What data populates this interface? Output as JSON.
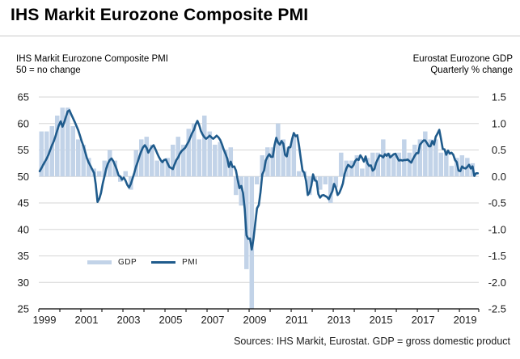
{
  "header": {
    "title": "IHS Markit Eurozone Composite PMI"
  },
  "subtitle_left": {
    "line1": "IHS Markit Eurozone Composite PMI",
    "line2": "50 = no change"
  },
  "subtitle_right": {
    "line1": "Eurostat Eurozone GDP",
    "line2": "Quarterly % change"
  },
  "legend": {
    "gdp_label": "GDP",
    "pmi_label": "PMI"
  },
  "footer": {
    "source": "Sources: IHS Markit, Eurostat. GDP = gross domestic product"
  },
  "colors": {
    "gdp_bar": "#c2d3e8",
    "pmi_line": "#1f5b8c",
    "gridline": "#d5d5d5",
    "axis": "#000000",
    "text": "#1a1a1a"
  },
  "chart_data": {
    "type": "bar+line combo, dual y-axis",
    "title": "IHS Markit Eurozone Composite PMI",
    "x_axis": {
      "start": 1999,
      "end": 2019.92,
      "tick_years": [
        1999,
        2001,
        2003,
        2005,
        2007,
        2009,
        2011,
        2013,
        2015,
        2017,
        2019
      ]
    },
    "left_axis": {
      "label": "PMI, 50 = no change",
      "min": 25,
      "max": 65,
      "step": 5,
      "ticks": [
        65,
        60,
        55,
        50,
        45,
        40,
        35,
        30,
        25
      ]
    },
    "right_axis": {
      "label": "GDP quarterly % change",
      "min": -2.5,
      "max": 1.5,
      "step": 0.5,
      "ticks": [
        "1.5",
        "1.0",
        "0.5",
        "0.0",
        "-0.5",
        "-1.0",
        "-1.5",
        "-2.0",
        "-2.5"
      ]
    },
    "grid": "horizontal only",
    "legend_position": "inside lower-left",
    "note": "2009 Q1 GDP bar clipped at axis minimum -2.5",
    "series": [
      {
        "name": "GDP",
        "type": "bar",
        "frequency": "quarterly",
        "start": "1999Q1",
        "end": "2019Q3",
        "axis": "right",
        "values": [
          0.85,
          0.85,
          0.95,
          1.15,
          1.3,
          1.3,
          0.95,
          0.7,
          0.6,
          0.35,
          0.15,
          0.1,
          0.3,
          0.5,
          0.3,
          -0.1,
          0.1,
          -0.25,
          0.5,
          0.7,
          0.75,
          0.6,
          0.3,
          0.3,
          0.35,
          0.6,
          0.75,
          0.6,
          0.9,
          1.0,
          0.7,
          1.15,
          0.85,
          0.6,
          0.65,
          0.5,
          0.55,
          -0.35,
          -0.55,
          -1.75,
          -2.5,
          -0.15,
          0.4,
          0.55,
          0.55,
          1.0,
          0.7,
          0.55,
          0.75,
          0.1,
          0.1,
          -0.35,
          -0.1,
          -0.25,
          -0.15,
          -0.5,
          -0.2,
          0.45,
          0.3,
          0.3,
          0.4,
          0.15,
          0.35,
          0.45,
          0.45,
          0.7,
          0.45,
          0.4,
          0.45,
          0.7,
          0.45,
          0.6,
          0.7,
          0.85,
          0.7,
          0.7,
          0.45,
          0.45,
          0.2,
          0.35,
          0.4,
          0.35,
          0.25
        ]
      },
      {
        "name": "PMI",
        "type": "line",
        "frequency": "monthly",
        "start": "1999-01",
        "end": "2019-11",
        "axis": "left",
        "values": [
          51.0,
          51.6,
          52.2,
          52.8,
          53.4,
          54.1,
          55.0,
          55.9,
          56.6,
          57.6,
          58.7,
          59.7,
          60.4,
          59.4,
          60.2,
          61.3,
          62.3,
          62.5,
          61.7,
          61.0,
          60.3,
          59.5,
          58.7,
          57.7,
          56.6,
          55.7,
          54.6,
          53.4,
          52.6,
          52.0,
          51.3,
          50.7,
          48.5,
          45.2,
          45.8,
          46.9,
          48.7,
          50.1,
          51.5,
          52.5,
          53.1,
          53.4,
          52.9,
          52.1,
          51.3,
          50.2,
          50.0,
          49.4,
          49.8,
          49.2,
          48.4,
          47.9,
          48.6,
          49.6,
          50.7,
          51.9,
          52.8,
          53.9,
          54.8,
          55.5,
          55.9,
          55.4,
          54.5,
          55.1,
          55.6,
          55.9,
          55.2,
          54.4,
          53.7,
          53.1,
          52.7,
          53.1,
          53.2,
          52.5,
          51.8,
          51.6,
          51.4,
          52.3,
          53.1,
          53.6,
          54.3,
          54.8,
          55.1,
          55.4,
          56.0,
          56.6,
          57.4,
          58.2,
          58.8,
          59.8,
          60.5,
          59.7,
          58.6,
          57.9,
          57.4,
          57.1,
          57.4,
          57.7,
          57.4,
          57.1,
          57.4,
          57.7,
          57.4,
          56.9,
          56.1,
          55.1,
          54.3,
          53.4,
          51.8,
          52.8,
          51.8,
          51.9,
          51.1,
          49.3,
          47.8,
          48.2,
          46.9,
          43.9,
          38.9,
          38.2,
          38.3,
          36.2,
          38.3,
          41.1,
          44.0,
          44.6,
          47.0,
          50.4,
          51.1,
          53.0,
          53.7,
          54.2,
          53.7,
          53.7,
          55.9,
          57.3,
          56.4,
          56.0,
          56.7,
          56.2,
          54.1,
          53.8,
          55.5,
          55.5,
          57.0,
          58.2,
          57.6,
          57.8,
          55.8,
          53.3,
          51.1,
          50.7,
          49.1,
          46.5,
          47.0,
          48.3,
          50.4,
          49.3,
          49.1,
          46.7,
          46.0,
          46.4,
          46.5,
          46.3,
          46.1,
          45.7,
          46.5,
          47.2,
          48.6,
          47.9,
          46.5,
          46.9,
          47.7,
          48.7,
          50.5,
          51.5,
          52.2,
          51.9,
          51.7,
          52.1,
          52.9,
          53.3,
          53.1,
          54.0,
          53.5,
          52.8,
          53.8,
          52.5,
          52.0,
          52.1,
          51.1,
          51.4,
          52.6,
          53.3,
          54.0,
          53.9,
          53.6,
          54.2,
          53.9,
          54.3,
          53.6,
          53.9,
          54.2,
          54.3,
          53.6,
          53.0,
          53.1,
          53.0,
          53.1,
          53.1,
          53.2,
          52.9,
          52.6,
          53.3,
          53.9,
          54.4,
          54.4,
          56.0,
          56.4,
          56.8,
          56.8,
          56.3,
          55.7,
          55.7,
          56.7,
          56.0,
          57.5,
          58.1,
          58.8,
          57.1,
          55.2,
          55.1,
          54.1,
          54.9,
          54.3,
          54.5,
          54.1,
          53.1,
          52.7,
          51.1,
          51.0,
          51.9,
          51.6,
          51.5,
          51.8,
          52.2,
          51.5,
          51.9,
          50.1,
          50.6,
          50.6
        ]
      }
    ]
  }
}
